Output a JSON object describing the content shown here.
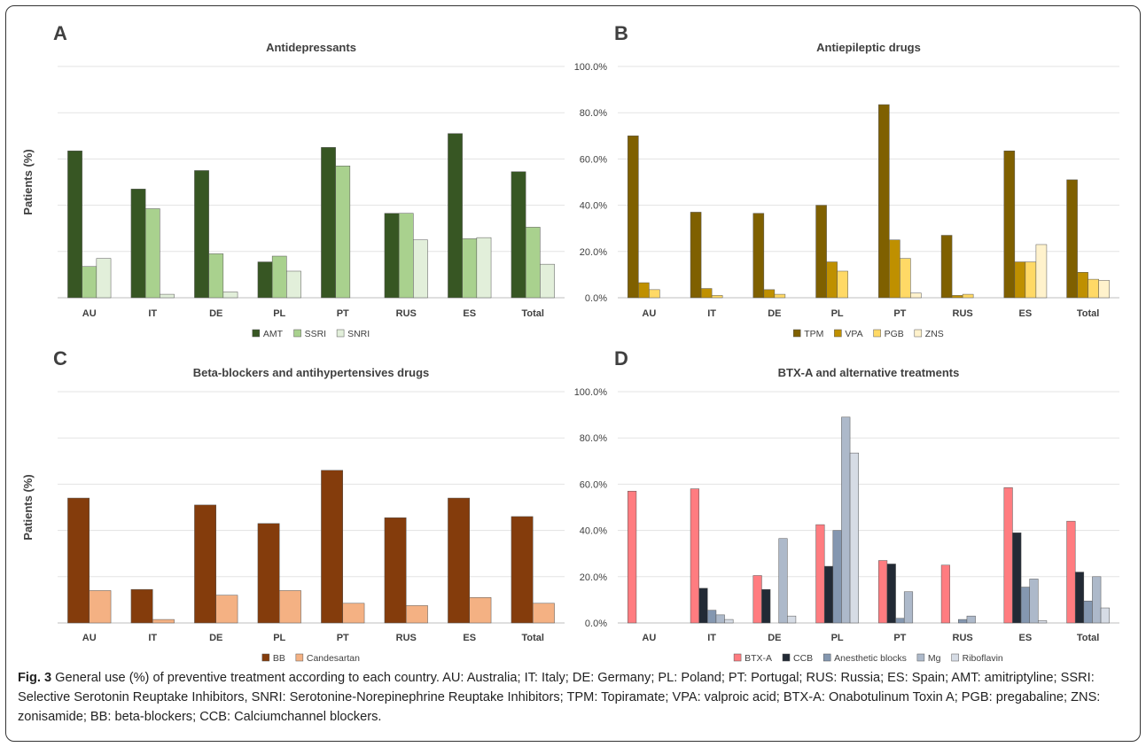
{
  "chart_data": [
    {
      "panel": "A",
      "type": "bar",
      "title": "Antidepressants",
      "ylabel": "Patients (%)",
      "xlabel": "",
      "ylim": [
        0,
        100
      ],
      "grid": true,
      "y_tick_labels_shown": false,
      "legend_position": "bottom",
      "categories": [
        "AU",
        "IT",
        "DE",
        "PL",
        "PT",
        "RUS",
        "ES",
        "Total"
      ],
      "series": [
        {
          "name": "AMT",
          "color": "#375623",
          "values": [
            63.5,
            47.0,
            55.0,
            15.5,
            65.0,
            36.5,
            71.0,
            54.5
          ]
        },
        {
          "name": "SSRI",
          "color": "#a9d18e",
          "values": [
            13.5,
            38.5,
            19.0,
            18.0,
            57.0,
            36.5,
            25.5,
            30.5
          ]
        },
        {
          "name": "SNRI",
          "color": "#e2efda",
          "values": [
            17.0,
            1.5,
            2.5,
            11.5,
            0,
            25.0,
            26.0,
            14.5
          ]
        }
      ]
    },
    {
      "panel": "B",
      "type": "bar",
      "title": "Antiepileptic drugs",
      "ylabel": "",
      "xlabel": "",
      "ylim": [
        0,
        100
      ],
      "grid": true,
      "y_tick_labels": [
        "0.0%",
        "20.0%",
        "40.0%",
        "60.0%",
        "80.0%",
        "100.0%"
      ],
      "legend_position": "bottom",
      "categories": [
        "AU",
        "IT",
        "DE",
        "PL",
        "PT",
        "RUS",
        "ES",
        "Total"
      ],
      "series": [
        {
          "name": "TPM",
          "color": "#7f6000",
          "values": [
            70.0,
            37.0,
            36.5,
            40.0,
            83.5,
            27.0,
            63.5,
            51.0
          ]
        },
        {
          "name": "VPA",
          "color": "#bf9000",
          "values": [
            6.5,
            4.0,
            3.5,
            15.5,
            25.0,
            1.0,
            15.5,
            11.0
          ]
        },
        {
          "name": "PGB",
          "color": "#ffd966",
          "values": [
            3.5,
            1.0,
            1.5,
            11.5,
            17.0,
            1.5,
            15.5,
            8.0
          ]
        },
        {
          "name": "ZNS",
          "color": "#fff2cc",
          "values": [
            0,
            0,
            0,
            0,
            2.0,
            0,
            23.0,
            7.5
          ]
        }
      ]
    },
    {
      "panel": "C",
      "type": "bar",
      "title": "Beta-blockers and antihypertensives drugs",
      "ylabel": "Patients (%)",
      "xlabel": "",
      "ylim": [
        0,
        100
      ],
      "grid": true,
      "y_tick_labels_shown": false,
      "legend_position": "bottom",
      "categories": [
        "AU",
        "IT",
        "DE",
        "PL",
        "PT",
        "RUS",
        "ES",
        "Total"
      ],
      "series": [
        {
          "name": "BB",
          "color": "#843c0c",
          "values": [
            54.0,
            14.5,
            51.0,
            43.0,
            66.0,
            45.5,
            54.0,
            46.0
          ]
        },
        {
          "name": "Candesartan",
          "color": "#f4b183",
          "values": [
            14.0,
            1.5,
            12.0,
            14.0,
            8.5,
            7.5,
            11.0,
            8.5
          ]
        }
      ]
    },
    {
      "panel": "D",
      "type": "bar",
      "title": "BTX-A and alternative treatments",
      "ylabel": "",
      "xlabel": "",
      "ylim": [
        0,
        100
      ],
      "grid": true,
      "y_tick_labels": [
        "0.0%",
        "20.0%",
        "40.0%",
        "60.0%",
        "80.0%",
        "100.0%"
      ],
      "legend_position": "bottom",
      "categories": [
        "AU",
        "IT",
        "DE",
        "PL",
        "PT",
        "RUS",
        "ES",
        "Total"
      ],
      "series": [
        {
          "name": "BTX-A",
          "color": "#ff7c80",
          "values": [
            57.0,
            58.0,
            20.5,
            42.5,
            27.0,
            25.0,
            58.5,
            44.0
          ]
        },
        {
          "name": "CCB",
          "color": "#222a35",
          "values": [
            0,
            15.0,
            14.5,
            24.5,
            25.5,
            0,
            39.0,
            22.0
          ]
        },
        {
          "name": "Anesthetic blocks",
          "color": "#8497b0",
          "values": [
            0,
            5.5,
            0,
            40.0,
            2.0,
            1.5,
            15.5,
            9.5
          ]
        },
        {
          "name": "Mg",
          "color": "#adb9ca",
          "values": [
            0,
            3.5,
            36.5,
            89.0,
            13.5,
            3.0,
            19.0,
            20.0
          ]
        },
        {
          "name": "Riboflavin",
          "color": "#d6dce5",
          "values": [
            0,
            1.5,
            3.0,
            73.5,
            0,
            0,
            1.0,
            6.5
          ]
        }
      ]
    }
  ],
  "caption": {
    "label": "Fig. 3",
    "text": " General use (%) of preventive treatment according to each country. AU: Australia; IT: Italy; DE: Germany; PL: Poland; PT: Portugal; RUS: Russia; ES: Spain; AMT: amitriptyline; SSRI: Selective Serotonin Reuptake Inhibitors, SNRI: Serotonine-Norepinephrine Reuptake Inhibitors; TPM: Topiramate; VPA: valproic acid; BTX-A: Onabotulinum Toxin A; PGB: pregabaline; ZNS: zonisamide; BB: beta-blockers; CCB: Calciumchannel blockers."
  }
}
